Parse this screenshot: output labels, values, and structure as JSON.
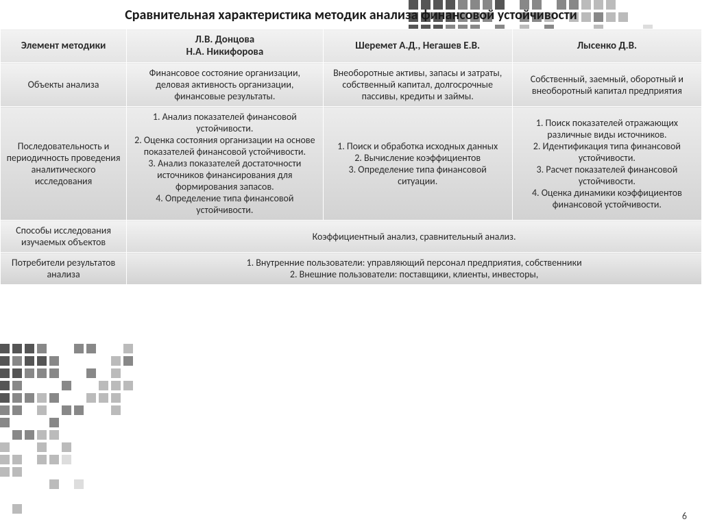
{
  "title": "Сравнительная характеристика методик анализа финансовой устойчивости",
  "title_fontsize": 20,
  "page_number": "6",
  "table": {
    "header_fontsize": 15,
    "cell_fontsize": 14,
    "columns": [
      "Элемент методики",
      "Л.В. Донцова\nН.А. Никифорова",
      "Шеремет А.Д., Негашев Е.В.",
      "Лысенко Д.В."
    ],
    "rows": [
      {
        "label": "Объекты анализа",
        "cells": [
          "Финансовое состояние организации, деловая активность организации, финансовые результаты.",
          "Внеоборотные активы, запасы и затраты, собственный капитал, долгосрочные пассивы, кредиты и займы.",
          "Собственный, заемный, оборотный и внеоборотный капитал предприятия"
        ]
      },
      {
        "label": "Последовательность и периодичность проведения аналитического исследования",
        "cells": [
          "1. Анализ показателей финансовой устойчивости.\n2. Оценка состояния организации на основе показателей финансовой устойчивости.\n3. Анализ показателей достаточности источников финансирования для формирования запасов.\n4. Определение типа финансовой устойчивости.",
          "1. Поиск и обработка исходных данных\n2. Вычисление коэффициентов\n3. Определение типа финансовой ситуации.",
          "1. Поиск показателей отражающих различные виды источников.\n2. Идентификация типа финансовой устойчивости.\n3. Расчет показателей финансовой устойчивости.\n4. Оценка динамики коэффициентов финансовой устойчивости."
        ]
      },
      {
        "label": "Способы исследования изучаемых объектов",
        "merged": "Коэффициентный анализ,  сравнительный анализ."
      },
      {
        "label": "Потребители результатов анализа",
        "merged": "1. Внутренние пользователи: управляющий персонал предприятия, собственники\n2. Внешние пользователи: поставщики, клиенты, инвесторы,"
      }
    ]
  },
  "deco": {
    "colors": {
      "dark": "#555555",
      "mid": "#888888",
      "light": "#bbbbbb",
      "pale": "#dddddd"
    },
    "sq_size": 14,
    "gap": 4
  }
}
